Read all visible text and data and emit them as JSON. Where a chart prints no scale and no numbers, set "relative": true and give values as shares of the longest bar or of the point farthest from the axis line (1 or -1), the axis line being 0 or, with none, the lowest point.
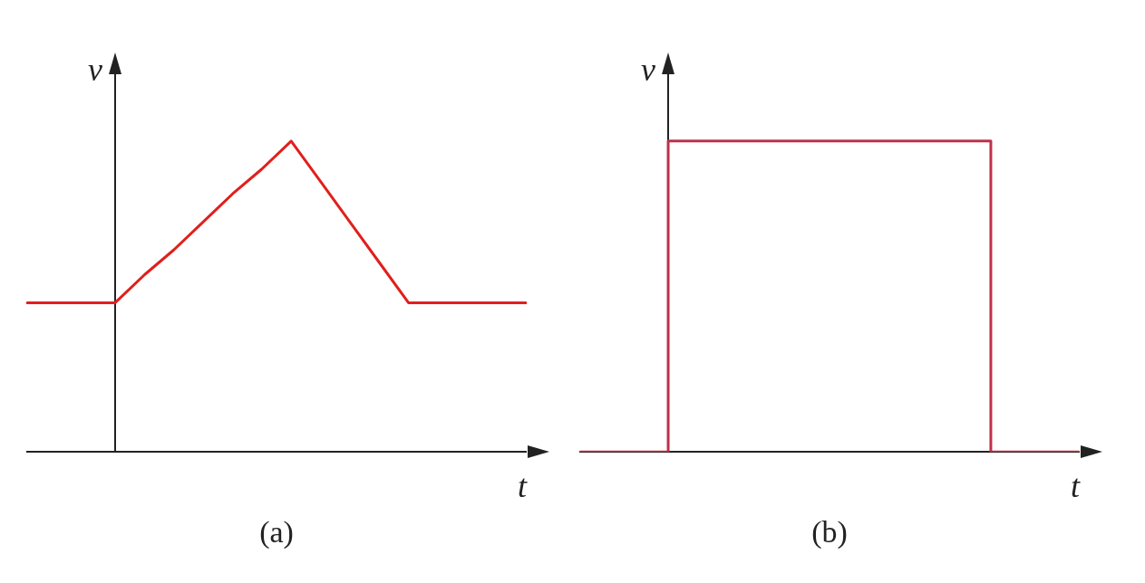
{
  "chart_data": [
    {
      "type": "line",
      "title": "(a)",
      "xlabel": "t",
      "ylabel": "v",
      "relative": true,
      "grid": false,
      "legend": false,
      "tick_labels": false,
      "marker": "none",
      "categories": [
        null,
        null,
        null,
        null,
        null,
        null,
        null,
        null,
        null,
        null,
        null,
        null,
        null,
        null,
        null,
        null,
        null,
        null
      ],
      "series": [
        {
          "color": "#e0201c",
          "values": [
            0.48,
            0.48,
            0.48,
            0.48,
            0.57,
            0.65,
            0.74,
            0.83,
            0.91,
            1,
            0.87,
            0.74,
            0.61,
            0.48,
            0.48,
            0.48,
            0.48,
            0.48
          ]
        }
      ]
    },
    {
      "type": "step",
      "title": "(b)",
      "xlabel": "t",
      "ylabel": "v",
      "relative": true,
      "grid": false,
      "legend": false,
      "tick_labels": false,
      "marker": "none",
      "categories": [
        null,
        null,
        null,
        null,
        null,
        null,
        null,
        null,
        null,
        null,
        null,
        null,
        null,
        null,
        null,
        null,
        null,
        null
      ],
      "series": [
        {
          "color": "#c0304a",
          "values": [
            0,
            0,
            0,
            1,
            1,
            1,
            1,
            1,
            1,
            1,
            1,
            1,
            1,
            1,
            0,
            0,
            0,
            0
          ]
        }
      ]
    }
  ]
}
